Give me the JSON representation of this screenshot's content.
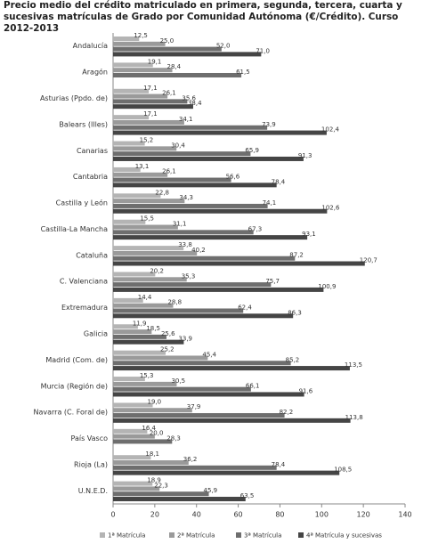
{
  "chart_data": {
    "type": "hbar",
    "title": "Precio medio del crédito matriculado en primera, segunda, tercera, cuarta y sucesivas matrículas de Grado por Comunidad Autónoma (€/Crédito). Curso 2012-2013",
    "categories": [
      "Andalucía",
      "Aragón",
      "Asturias (Ppdo. de)",
      "Balears (Illes)",
      "Canarias",
      "Cantabria",
      "Castilla y León",
      "Castilla-La Mancha",
      "Cataluña",
      "C. Valenciana",
      "Extremadura",
      "Galicia",
      "Madrid (Com. de)",
      "Murcia (Región de)",
      "Navarra (C. Foral de)",
      "País Vasco",
      "Rioja (La)",
      "U.N.E.D."
    ],
    "series": [
      {
        "name": "1ª Matrícula",
        "color": "#b4b4b4",
        "values": [
          12.5,
          19.1,
          17.1,
          17.1,
          15.2,
          13.1,
          22.8,
          15.5,
          33.8,
          20.2,
          14.4,
          11.9,
          25.2,
          15.3,
          19.0,
          16.4,
          18.1,
          18.9
        ],
        "value_labels": [
          "12,5",
          "19,1",
          "17,1",
          "17,1",
          "15,2",
          "13,1",
          "22,8",
          "15,5",
          "33,8",
          "20,2",
          "14,4",
          "11,9",
          "25,2",
          "15,3",
          "19,0",
          "16,4",
          "18,1",
          "18,9"
        ]
      },
      {
        "name": "2ª Matrícula",
        "color": "#9a9a9a",
        "values": [
          25.0,
          28.4,
          26.1,
          34.1,
          30.4,
          26.1,
          34.3,
          31.1,
          40.2,
          35.3,
          28.8,
          18.5,
          45.4,
          30.5,
          37.9,
          20.0,
          36.2,
          22.3
        ],
        "value_labels": [
          "25,0",
          "28,4",
          "26,1",
          "34,1",
          "30,4",
          "26,1",
          "34,3",
          "31,1",
          "40,2",
          "35,3",
          "28,8",
          "18,5",
          "45,4",
          "30,5",
          "37,9",
          "20,0",
          "36,2",
          "22,3"
        ]
      },
      {
        "name": "3ª Matrícula",
        "color": "#6e6e6e",
        "values": [
          52.0,
          61.5,
          35.6,
          73.9,
          65.9,
          56.6,
          74.1,
          67.3,
          87.2,
          75.7,
          62.4,
          25.6,
          85.2,
          66.1,
          82.2,
          28.3,
          78.4,
          45.9
        ],
        "value_labels": [
          "52,0",
          "61,5",
          "35,6",
          "73,9",
          "65,9",
          "56,6",
          "74,1",
          "67,3",
          "87,2",
          "75,7",
          "62,4",
          "25,6",
          "85,2",
          "66,1",
          "82,2",
          "28,3",
          "78,4",
          "45,9"
        ]
      },
      {
        "name": "4ª Matrícula y sucesivas",
        "color": "#454545",
        "values": [
          71.0,
          null,
          38.4,
          102.4,
          91.3,
          78.4,
          102.6,
          93.1,
          120.7,
          100.9,
          86.3,
          33.9,
          113.5,
          91.6,
          113.8,
          null,
          108.5,
          63.5
        ],
        "value_labels": [
          "71,0",
          null,
          "38,4",
          "102,4",
          "91,3",
          "78,4",
          "102,6",
          "93,1",
          "120,7",
          "100,9",
          "86,3",
          "33,9",
          "113,5",
          "91,6",
          "113,8",
          null,
          "108,5",
          "63,5"
        ]
      }
    ],
    "xlim": [
      0,
      140
    ],
    "xticks": [
      0,
      20,
      40,
      60,
      80,
      100,
      120,
      140
    ],
    "grid": false
  }
}
